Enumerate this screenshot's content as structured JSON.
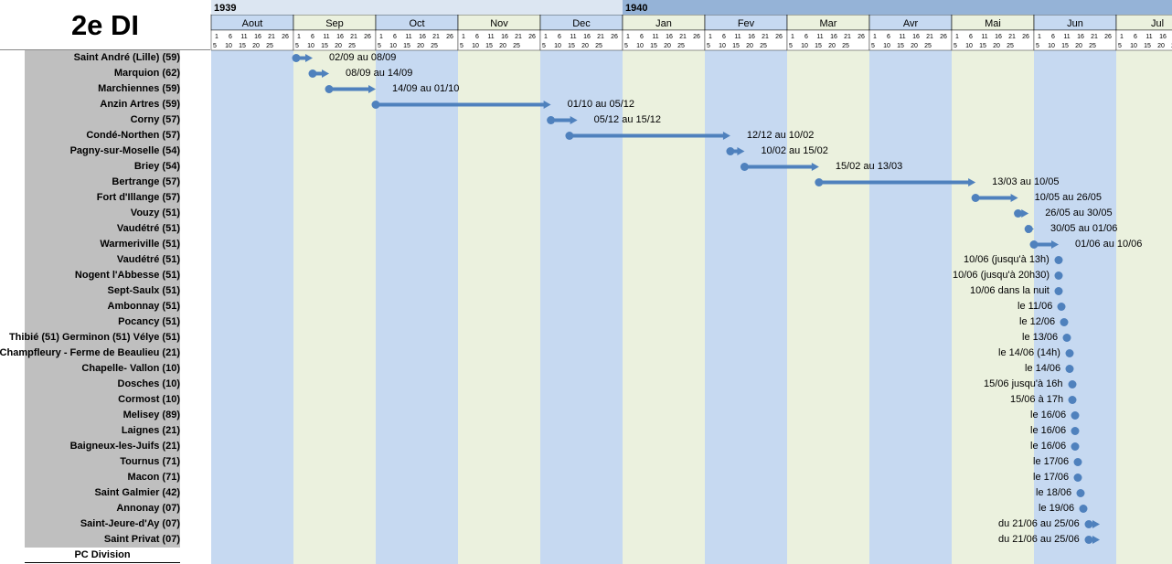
{
  "title": "2e DI",
  "footer_label": "PC Division",
  "colors": {
    "month_blue": "#c6d9f1",
    "month_green": "#ebf1de",
    "year_1939": "#dce6f2",
    "year_1940": "#95b3d7",
    "arrow": "#4f81bd"
  },
  "chart_data": {
    "type": "gantt",
    "years": [
      {
        "label": "1939",
        "months": 5
      },
      {
        "label": "1940",
        "months": 7
      }
    ],
    "months": [
      {
        "label": "Aout",
        "days": 31,
        "color": "blue"
      },
      {
        "label": "Sep",
        "days": 30,
        "color": "green"
      },
      {
        "label": "Oct",
        "days": 31,
        "color": "blue"
      },
      {
        "label": "Nov",
        "days": 30,
        "color": "green"
      },
      {
        "label": "Dec",
        "days": 31,
        "color": "blue"
      },
      {
        "label": "Jan",
        "days": 31,
        "color": "green"
      },
      {
        "label": "Fev",
        "days": 29,
        "color": "blue"
      },
      {
        "label": "Mar",
        "days": 31,
        "color": "green"
      },
      {
        "label": "Avr",
        "days": 30,
        "color": "blue"
      },
      {
        "label": "Mai",
        "days": 31,
        "color": "green"
      },
      {
        "label": "Jun",
        "days": 30,
        "color": "blue"
      },
      {
        "label": "Jul",
        "days": 31,
        "color": "green"
      }
    ],
    "day_ticks": [
      "1",
      "6",
      "11",
      "16",
      "21",
      "26",
      "5",
      "10",
      "15",
      "20",
      "25"
    ],
    "rows": [
      {
        "place": "Saint André (Lille) (59)",
        "start": "1939-09-02",
        "end": "1939-09-08",
        "label": "02/09 au 08/09",
        "arrow": true
      },
      {
        "place": "Marquion (62)",
        "start": "1939-09-08",
        "end": "1939-09-14",
        "label": "08/09 au 14/09",
        "arrow": true
      },
      {
        "place": "Marchiennes (59)",
        "start": "1939-09-14",
        "end": "1939-10-01",
        "label": "14/09 au 01/10",
        "arrow": true
      },
      {
        "place": "Anzin Artres (59)",
        "start": "1939-10-01",
        "end": "1939-12-05",
        "label": "01/10 au 05/12",
        "arrow": true
      },
      {
        "place": "Corny (57)",
        "start": "1939-12-05",
        "end": "1939-12-15",
        "label": "05/12 au 15/12",
        "arrow": true
      },
      {
        "place": "Condé-Northen (57)",
        "start": "1939-12-12",
        "end": "1940-02-10",
        "label": "12/12 au 10/02",
        "arrow": true
      },
      {
        "place": "Pagny-sur-Moselle (54)",
        "start": "1940-02-10",
        "end": "1940-02-15",
        "label": "10/02 au 15/02",
        "arrow": true
      },
      {
        "place": "Briey (54)",
        "start": "1940-02-15",
        "end": "1940-03-13",
        "label": "15/02 au 13/03",
        "arrow": true
      },
      {
        "place": "Bertrange (57)",
        "start": "1940-03-13",
        "end": "1940-05-10",
        "label": "13/03 au 10/05",
        "arrow": true
      },
      {
        "place": "Fort d'Illange (57)",
        "start": "1940-05-10",
        "end": "1940-05-26",
        "label": "10/05 au 26/05",
        "arrow": true
      },
      {
        "place": "Vouzy (51)",
        "start": "1940-05-26",
        "end": "1940-05-30",
        "label": "26/05 au 30/05",
        "arrow": true
      },
      {
        "place": "Vaudétré (51)",
        "start": "1940-05-30",
        "end": "1940-06-01",
        "label": "30/05 au 01/06",
        "arrow": true
      },
      {
        "place": "Warmeriville (51)",
        "start": "1940-06-01",
        "end": "1940-06-10",
        "label": "01/06 au 10/06",
        "arrow": true
      },
      {
        "place": "Vaudétré (51)",
        "start": "1940-06-10",
        "end": null,
        "label": "10/06 (jusqu'à 13h)",
        "arrow": false
      },
      {
        "place": "Nogent l'Abbesse (51)",
        "start": "1940-06-10",
        "end": null,
        "label": "10/06 (jusqu'à 20h30)",
        "arrow": false
      },
      {
        "place": "Sept-Saulx (51)",
        "start": "1940-06-10",
        "end": null,
        "label": "10/06 dans la nuit",
        "arrow": false
      },
      {
        "place": "Ambonnay (51)",
        "start": "1940-06-11",
        "end": null,
        "label": "le 11/06",
        "arrow": false
      },
      {
        "place": "Pocancy (51)",
        "start": "1940-06-12",
        "end": null,
        "label": "le 12/06",
        "arrow": false
      },
      {
        "place": "Thibié (51) Germinon (51) Vélye (51)",
        "start": "1940-06-13",
        "end": null,
        "label": "le 13/06",
        "arrow": false
      },
      {
        "place": "Champfleury - Ferme de Beaulieu (21)",
        "start": "1940-06-14",
        "end": null,
        "label": "le 14/06 (14h)",
        "arrow": false
      },
      {
        "place": "Chapelle- Vallon (10)",
        "start": "1940-06-14",
        "end": null,
        "label": "le 14/06",
        "arrow": false
      },
      {
        "place": "Dosches (10)",
        "start": "1940-06-15",
        "end": null,
        "label": "15/06 jusqu'à 16h",
        "arrow": false
      },
      {
        "place": "Cormost (10)",
        "start": "1940-06-15",
        "end": null,
        "label": "15/06 à 17h",
        "arrow": false
      },
      {
        "place": "Melisey (89)",
        "start": "1940-06-16",
        "end": null,
        "label": "le 16/06",
        "arrow": false
      },
      {
        "place": "Laignes (21)",
        "start": "1940-06-16",
        "end": null,
        "label": "le 16/06",
        "arrow": false
      },
      {
        "place": "Baigneux-les-Juifs (21)",
        "start": "1940-06-16",
        "end": null,
        "label": "le 16/06",
        "arrow": false
      },
      {
        "place": "Tournus (71)",
        "start": "1940-06-17",
        "end": null,
        "label": "le 17/06",
        "arrow": false
      },
      {
        "place": "Macon (71)",
        "start": "1940-06-17",
        "end": null,
        "label": "le 17/06",
        "arrow": false
      },
      {
        "place": "Saint Galmier (42)",
        "start": "1940-06-18",
        "end": null,
        "label": "le 18/06",
        "arrow": false
      },
      {
        "place": "Annonay (07)",
        "start": "1940-06-19",
        "end": null,
        "label": "le 19/06",
        "arrow": false
      },
      {
        "place": "Saint-Jeure-d'Ay (07)",
        "start": "1940-06-21",
        "end": "1940-06-25",
        "label": "du 21/06 au 25/06",
        "arrow": true
      },
      {
        "place": "Saint Privat (07)",
        "start": "1940-06-21",
        "end": "1940-06-25",
        "label": "du 21/06 au 25/06",
        "arrow": true
      }
    ]
  }
}
